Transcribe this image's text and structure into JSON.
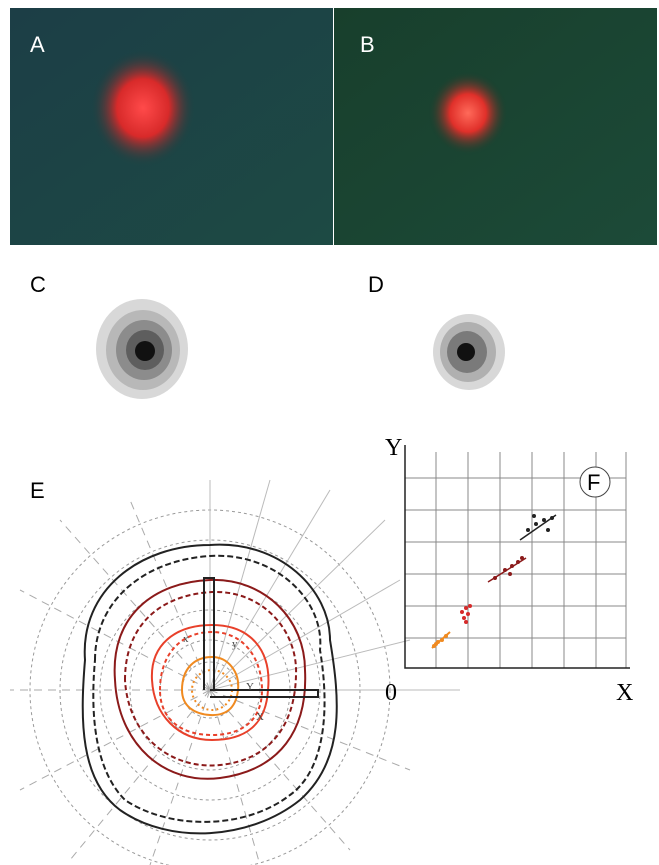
{
  "panels": {
    "a": "A",
    "b": "B",
    "c": "C",
    "d": "D",
    "e": "E",
    "f": "F"
  },
  "panel_e": {
    "small_labels": [
      "x",
      "y",
      "Y",
      "X"
    ]
  },
  "panel_f": {
    "y_axis_label": "Y",
    "x_axis_label": "X",
    "origin_label": "0"
  }
}
